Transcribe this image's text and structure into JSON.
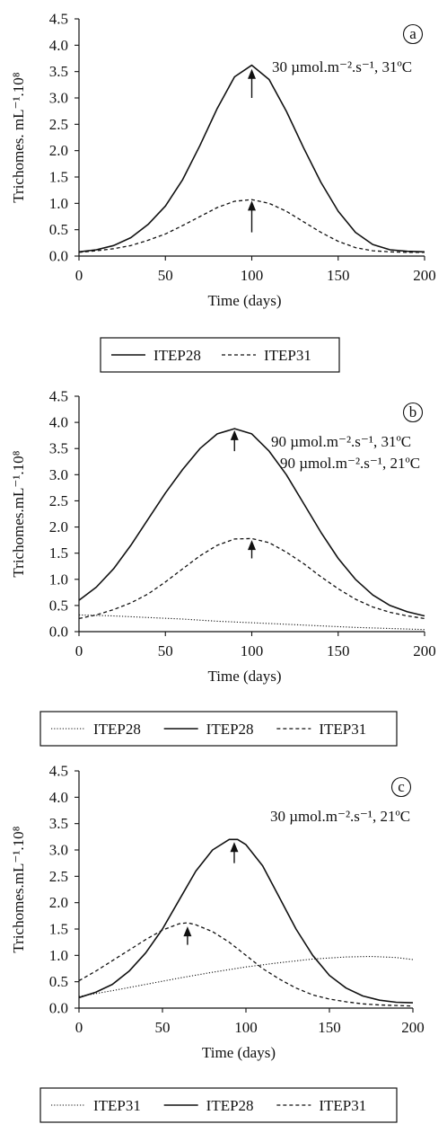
{
  "chart_data": [
    {
      "type": "line",
      "panel_label": "a",
      "xlabel": "Time (days)",
      "ylabel": "Trichomes. mL⁻¹.10⁸",
      "xlim": [
        0,
        200
      ],
      "ylim": [
        0,
        4.5
      ],
      "xticks": [
        "0",
        "50",
        "100",
        "150",
        "200"
      ],
      "yticks": [
        "0.0",
        "0.5",
        "1.0",
        "1.5",
        "2.0",
        "2.5",
        "3.0",
        "3.5",
        "4.0",
        "4.5"
      ],
      "annotations": [
        "30 µmol.m⁻².s⁻¹, 31ºC"
      ],
      "series": [
        {
          "name": "ITEP28",
          "style": "solid",
          "x": [
            0,
            10,
            20,
            30,
            40,
            50,
            60,
            70,
            80,
            90,
            100,
            110,
            120,
            130,
            140,
            150,
            160,
            170,
            180,
            190,
            200
          ],
          "y": [
            0.08,
            0.12,
            0.2,
            0.35,
            0.6,
            0.95,
            1.45,
            2.1,
            2.8,
            3.4,
            3.62,
            3.35,
            2.75,
            2.05,
            1.4,
            0.85,
            0.45,
            0.22,
            0.12,
            0.09,
            0.08
          ]
        },
        {
          "name": "ITEP31",
          "style": "dashed",
          "x": [
            0,
            10,
            20,
            30,
            40,
            50,
            60,
            70,
            80,
            90,
            100,
            110,
            120,
            130,
            140,
            150,
            160,
            170,
            180,
            190,
            200
          ],
          "y": [
            0.07,
            0.1,
            0.14,
            0.2,
            0.3,
            0.42,
            0.58,
            0.75,
            0.92,
            1.04,
            1.07,
            1.0,
            0.85,
            0.65,
            0.45,
            0.28,
            0.16,
            0.1,
            0.08,
            0.07,
            0.07
          ]
        }
      ],
      "arrows": [
        {
          "x": 100,
          "y_tip": 3.55,
          "y_tail": 3.0
        },
        {
          "x": 100,
          "y_tip": 1.05,
          "y_tail": 0.45
        }
      ]
    },
    {
      "type": "line",
      "panel_label": "b",
      "xlabel": "Time (days)",
      "ylabel": "Trichomes.mL⁻¹.10⁸",
      "xlim": [
        0,
        200
      ],
      "ylim": [
        0,
        4.5
      ],
      "xticks": [
        "0",
        "50",
        "100",
        "150",
        "200"
      ],
      "yticks": [
        "0.0",
        "0.5",
        "1.0",
        "1.5",
        "2.0",
        "2.5",
        "3.0",
        "3.5",
        "4.0",
        "4.5"
      ],
      "annotations": [
        "90 µmol.m⁻².s⁻¹, 31ºC",
        "90 µmol.m⁻².s⁻¹, 21ºC"
      ],
      "series": [
        {
          "name": "ITEP28",
          "style": "dotted",
          "x": [
            0,
            20,
            40,
            60,
            80,
            100,
            120,
            140,
            160,
            180,
            200
          ],
          "y": [
            0.32,
            0.3,
            0.27,
            0.24,
            0.2,
            0.17,
            0.14,
            0.11,
            0.08,
            0.06,
            0.04
          ]
        },
        {
          "name": "ITEP28",
          "style": "solid",
          "x": [
            0,
            10,
            20,
            30,
            40,
            50,
            60,
            70,
            80,
            90,
            100,
            110,
            120,
            130,
            140,
            150,
            160,
            170,
            180,
            190,
            200
          ],
          "y": [
            0.6,
            0.85,
            1.2,
            1.65,
            2.15,
            2.65,
            3.1,
            3.5,
            3.78,
            3.88,
            3.78,
            3.45,
            3.0,
            2.45,
            1.9,
            1.4,
            1.0,
            0.7,
            0.5,
            0.38,
            0.3
          ]
        },
        {
          "name": "ITEP31",
          "style": "dashed",
          "x": [
            0,
            10,
            20,
            30,
            40,
            50,
            60,
            70,
            80,
            90,
            100,
            110,
            120,
            130,
            140,
            150,
            160,
            170,
            180,
            190,
            200
          ],
          "y": [
            0.25,
            0.32,
            0.42,
            0.55,
            0.72,
            0.95,
            1.2,
            1.45,
            1.65,
            1.77,
            1.78,
            1.7,
            1.52,
            1.3,
            1.05,
            0.82,
            0.62,
            0.47,
            0.37,
            0.3,
            0.25
          ]
        }
      ],
      "arrows": [
        {
          "x": 90,
          "y_tip": 3.85,
          "y_tail": 3.45
        },
        {
          "x": 100,
          "y_tip": 1.75,
          "y_tail": 1.4
        }
      ]
    },
    {
      "type": "line",
      "panel_label": "c",
      "xlabel": "Time (days)",
      "ylabel": "Trichomes.mL⁻¹.10⁸",
      "xlim": [
        0,
        200
      ],
      "ylim": [
        0,
        4.5
      ],
      "xticks": [
        "0",
        "50",
        "100",
        "150",
        "200"
      ],
      "yticks": [
        "0.0",
        "0.5",
        "1.0",
        "1.5",
        "2.0",
        "2.5",
        "3.0",
        "3.5",
        "4.0",
        "4.5"
      ],
      "annotations": [
        "30 µmol.m⁻².s⁻¹, 21ºC"
      ],
      "series": [
        {
          "name": "ITEP31",
          "style": "dotted",
          "x": [
            0,
            20,
            40,
            60,
            80,
            100,
            120,
            140,
            160,
            175,
            190,
            200
          ],
          "y": [
            0.22,
            0.33,
            0.45,
            0.57,
            0.68,
            0.78,
            0.86,
            0.93,
            0.97,
            0.98,
            0.96,
            0.92
          ]
        },
        {
          "name": "ITEP28",
          "style": "solid",
          "x": [
            0,
            10,
            20,
            30,
            40,
            50,
            60,
            70,
            80,
            90,
            95,
            100,
            110,
            120,
            130,
            140,
            150,
            160,
            170,
            180,
            190,
            200
          ],
          "y": [
            0.2,
            0.3,
            0.45,
            0.7,
            1.05,
            1.5,
            2.05,
            2.6,
            3.0,
            3.2,
            3.2,
            3.1,
            2.7,
            2.1,
            1.5,
            1.0,
            0.62,
            0.38,
            0.23,
            0.15,
            0.11,
            0.1
          ]
        },
        {
          "name": "ITEP31",
          "style": "dashed",
          "x": [
            0,
            10,
            20,
            30,
            40,
            50,
            60,
            65,
            70,
            80,
            90,
            100,
            110,
            120,
            130,
            140,
            150,
            160,
            170,
            180,
            190,
            200
          ],
          "y": [
            0.52,
            0.7,
            0.9,
            1.1,
            1.3,
            1.48,
            1.6,
            1.62,
            1.58,
            1.45,
            1.25,
            1.0,
            0.75,
            0.55,
            0.38,
            0.25,
            0.17,
            0.12,
            0.08,
            0.06,
            0.05,
            0.04
          ]
        }
      ],
      "arrows": [
        {
          "x": 93,
          "y_tip": 3.15,
          "y_tail": 2.75
        },
        {
          "x": 65,
          "y_tip": 1.55,
          "y_tail": 1.2
        }
      ]
    }
  ]
}
